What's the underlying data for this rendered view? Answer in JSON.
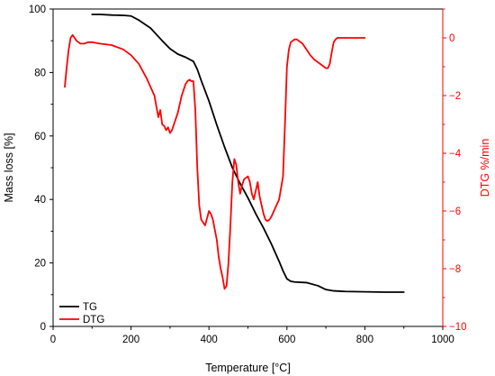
{
  "chart_data": {
    "type": "line",
    "title": "",
    "xlabel": "Temperature [°C]",
    "ylabel_left": "Mass loss [%]",
    "ylabel_right": "DTG %/min",
    "xlim": [
      0,
      1000
    ],
    "ylim_left": [
      0,
      100
    ],
    "ylim_right": [
      -10,
      1
    ],
    "xticks": [
      0,
      200,
      400,
      600,
      800,
      1000
    ],
    "yticks_left": [
      0,
      20,
      40,
      60,
      80,
      100
    ],
    "yticks_right": [
      -10,
      -8,
      -6,
      -4,
      -2,
      0
    ],
    "grid": false,
    "legend_position": "bottom-left",
    "colors": {
      "left_axis": "#000000",
      "right_axis": "#ff0000"
    },
    "series": [
      {
        "name": "TG",
        "axis": "left",
        "color": "#000000",
        "x": [
          100,
          120,
          150,
          180,
          200,
          220,
          250,
          280,
          300,
          320,
          340,
          360,
          370,
          380,
          400,
          420,
          440,
          460,
          480,
          500,
          520,
          540,
          560,
          580,
          590,
          600,
          610,
          620,
          650,
          680,
          700,
          720,
          750,
          800,
          850,
          900
        ],
        "y": [
          98.3,
          98.3,
          98.1,
          98.0,
          97.8,
          96.5,
          94.0,
          90.0,
          87.5,
          85.8,
          84.8,
          83.5,
          81.0,
          77.5,
          71.0,
          63.5,
          56.5,
          50.0,
          45.0,
          40.5,
          35.5,
          31.0,
          26.0,
          20.5,
          17.5,
          15.0,
          14.2,
          14.0,
          13.8,
          12.8,
          11.6,
          11.2,
          11.0,
          10.9,
          10.8,
          10.8
        ]
      },
      {
        "name": "DTG",
        "axis": "right",
        "color": "#ff0000",
        "x": [
          30,
          35,
          40,
          45,
          50,
          60,
          70,
          80,
          90,
          100,
          120,
          150,
          180,
          200,
          220,
          240,
          260,
          270,
          275,
          280,
          285,
          290,
          295,
          300,
          305,
          310,
          320,
          330,
          340,
          345,
          350,
          355,
          360,
          365,
          370,
          375,
          380,
          390,
          400,
          405,
          410,
          420,
          425,
          430,
          435,
          440,
          445,
          450,
          455,
          460,
          465,
          470,
          475,
          480,
          485,
          490,
          495,
          500,
          505,
          510,
          515,
          520,
          525,
          530,
          535,
          540,
          545,
          550,
          555,
          560,
          570,
          580,
          590,
          595,
          600,
          605,
          610,
          615,
          620,
          625,
          630,
          640,
          650,
          660,
          670,
          680,
          690,
          700,
          705,
          710,
          715,
          720,
          725,
          730,
          740,
          760,
          780,
          800
        ],
        "y": [
          -1.7,
          -1.0,
          -0.4,
          0.0,
          0.1,
          -0.1,
          -0.2,
          -0.2,
          -0.15,
          -0.15,
          -0.2,
          -0.25,
          -0.4,
          -0.6,
          -0.9,
          -1.4,
          -2.0,
          -2.75,
          -2.5,
          -3.0,
          -3.05,
          -3.2,
          -3.1,
          -3.3,
          -3.2,
          -3.0,
          -2.6,
          -2.0,
          -1.6,
          -1.5,
          -1.45,
          -1.5,
          -1.5,
          -2.5,
          -4.5,
          -5.8,
          -6.3,
          -6.5,
          -6.0,
          -6.1,
          -6.3,
          -7.0,
          -7.6,
          -8.0,
          -8.3,
          -8.7,
          -8.6,
          -7.8,
          -6.5,
          -5.0,
          -4.2,
          -4.4,
          -5.0,
          -5.4,
          -5.1,
          -4.9,
          -4.85,
          -4.8,
          -5.0,
          -5.4,
          -5.6,
          -5.3,
          -5.0,
          -5.5,
          -5.8,
          -6.1,
          -6.3,
          -6.35,
          -6.3,
          -6.2,
          -5.9,
          -5.6,
          -4.8,
          -3.0,
          -1.0,
          -0.4,
          -0.15,
          -0.1,
          -0.05,
          -0.05,
          -0.1,
          -0.2,
          -0.4,
          -0.6,
          -0.75,
          -0.85,
          -0.95,
          -1.05,
          -1.05,
          -0.9,
          -0.5,
          -0.15,
          -0.05,
          0.0,
          0.0,
          0.0,
          0.0,
          0.0
        ]
      }
    ]
  }
}
